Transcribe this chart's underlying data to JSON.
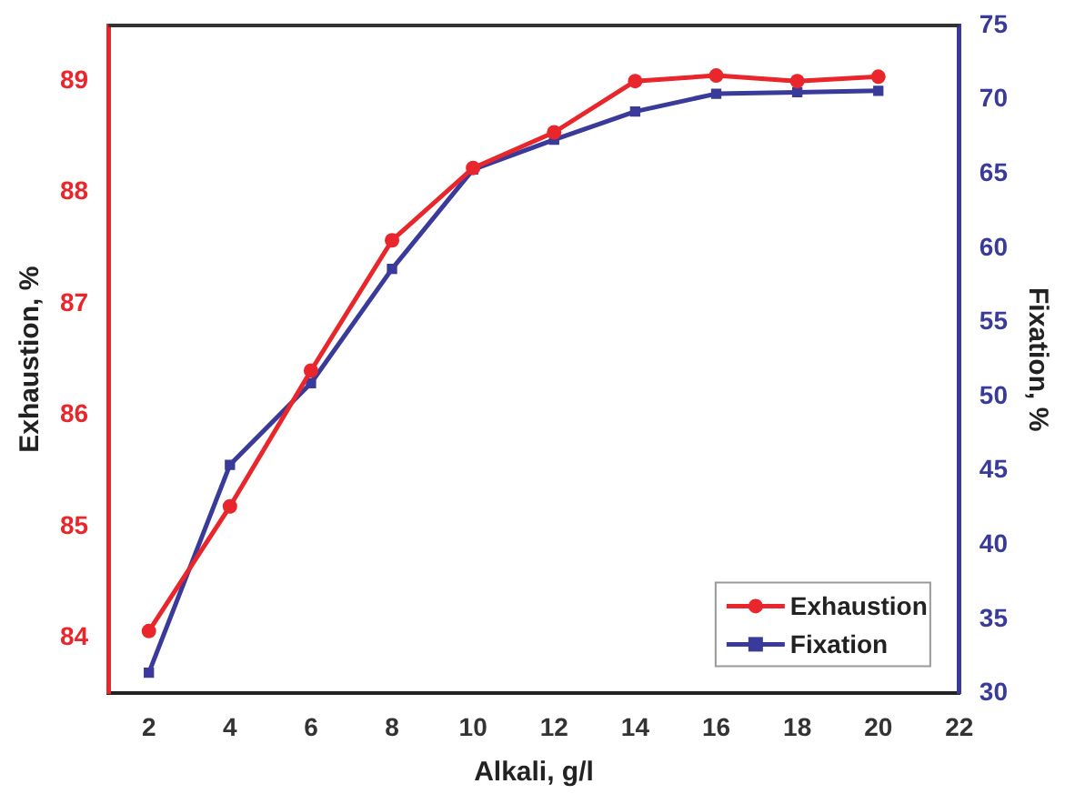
{
  "chart_data": {
    "type": "line",
    "xlabel": "Alkali, g/l",
    "ylabel": "Exhaustion, %",
    "y2label": "Fixation, %",
    "x": [
      2,
      4,
      6,
      8,
      10,
      12,
      14,
      16,
      18,
      20
    ],
    "series": [
      {
        "name": "Exhaustion",
        "color": "#e8262b",
        "values": [
          84.06,
          85.18,
          86.4,
          87.57,
          88.22,
          88.54,
          89.0,
          89.05,
          89.0,
          89.04
        ]
      },
      {
        "name": "Fixation",
        "color": "#3a3a9a",
        "axis": "y2",
        "marker": "square",
        "values": [
          31.4,
          45.4,
          50.9,
          58.6,
          65.3,
          67.3,
          69.2,
          70.4,
          70.5,
          70.6
        ]
      }
    ],
    "xlim": [
      1,
      22
    ],
    "xticks": [
      2,
      4,
      6,
      8,
      10,
      12,
      14,
      16,
      18,
      20,
      22
    ],
    "ylim": [
      83.5,
      89.5
    ],
    "yticks": [
      84,
      85,
      86,
      87,
      88,
      89
    ],
    "y2lim": [
      30,
      75
    ],
    "y2ticks": [
      30,
      35,
      40,
      45,
      50,
      55,
      60,
      65,
      70,
      75
    ],
    "marker": "circle",
    "line_style": "solid",
    "grid": false,
    "legend": "bottom right"
  }
}
